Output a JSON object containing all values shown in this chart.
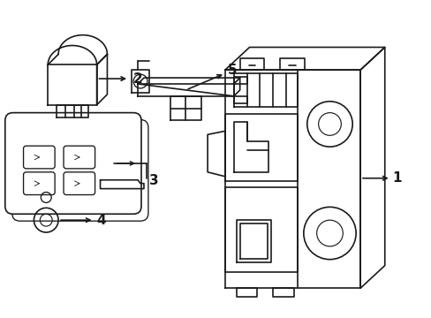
{
  "bg_color": "#ffffff",
  "line_color": "#1a1a1a",
  "lw": 1.2,
  "fig_width": 4.89,
  "fig_height": 3.6
}
